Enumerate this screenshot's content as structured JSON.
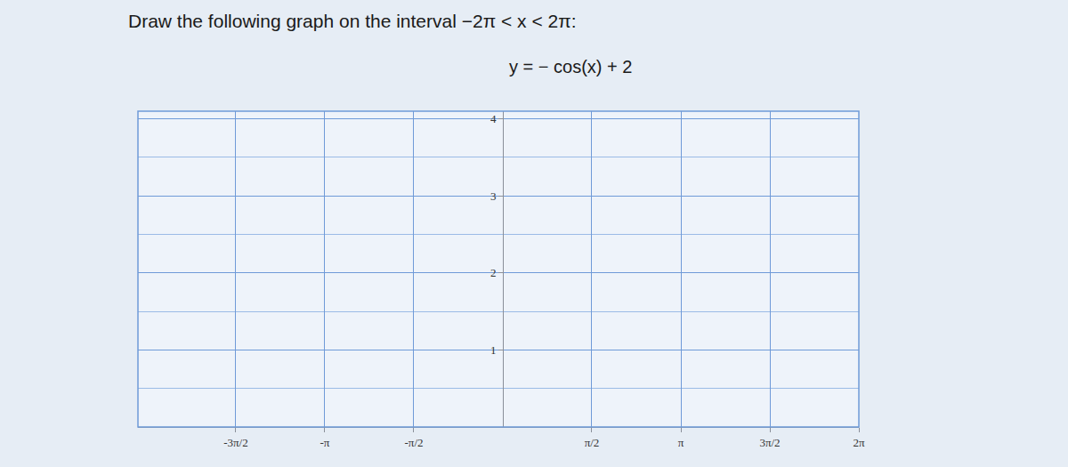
{
  "chart_data": {
    "type": "line",
    "title": "Draw the following graph on the interval −2π < x < 2π:",
    "subtitle": "y = − cos(x) + 2",
    "xlim": [
      -6.44,
      6.2832
    ],
    "xticks": [
      {
        "value": -4.7124,
        "label": "-3π/2"
      },
      {
        "value": -3.1416,
        "label": "-π"
      },
      {
        "value": -1.5708,
        "label": "-π/2"
      },
      {
        "value": 1.5708,
        "label": "π/2"
      },
      {
        "value": 3.1416,
        "label": "π"
      },
      {
        "value": 4.7124,
        "label": "3π/2"
      },
      {
        "value": 6.2832,
        "label": "2π"
      }
    ],
    "ylim": [
      0,
      4.1
    ],
    "yticks": [
      1,
      2,
      3,
      4
    ],
    "grid": true
  }
}
